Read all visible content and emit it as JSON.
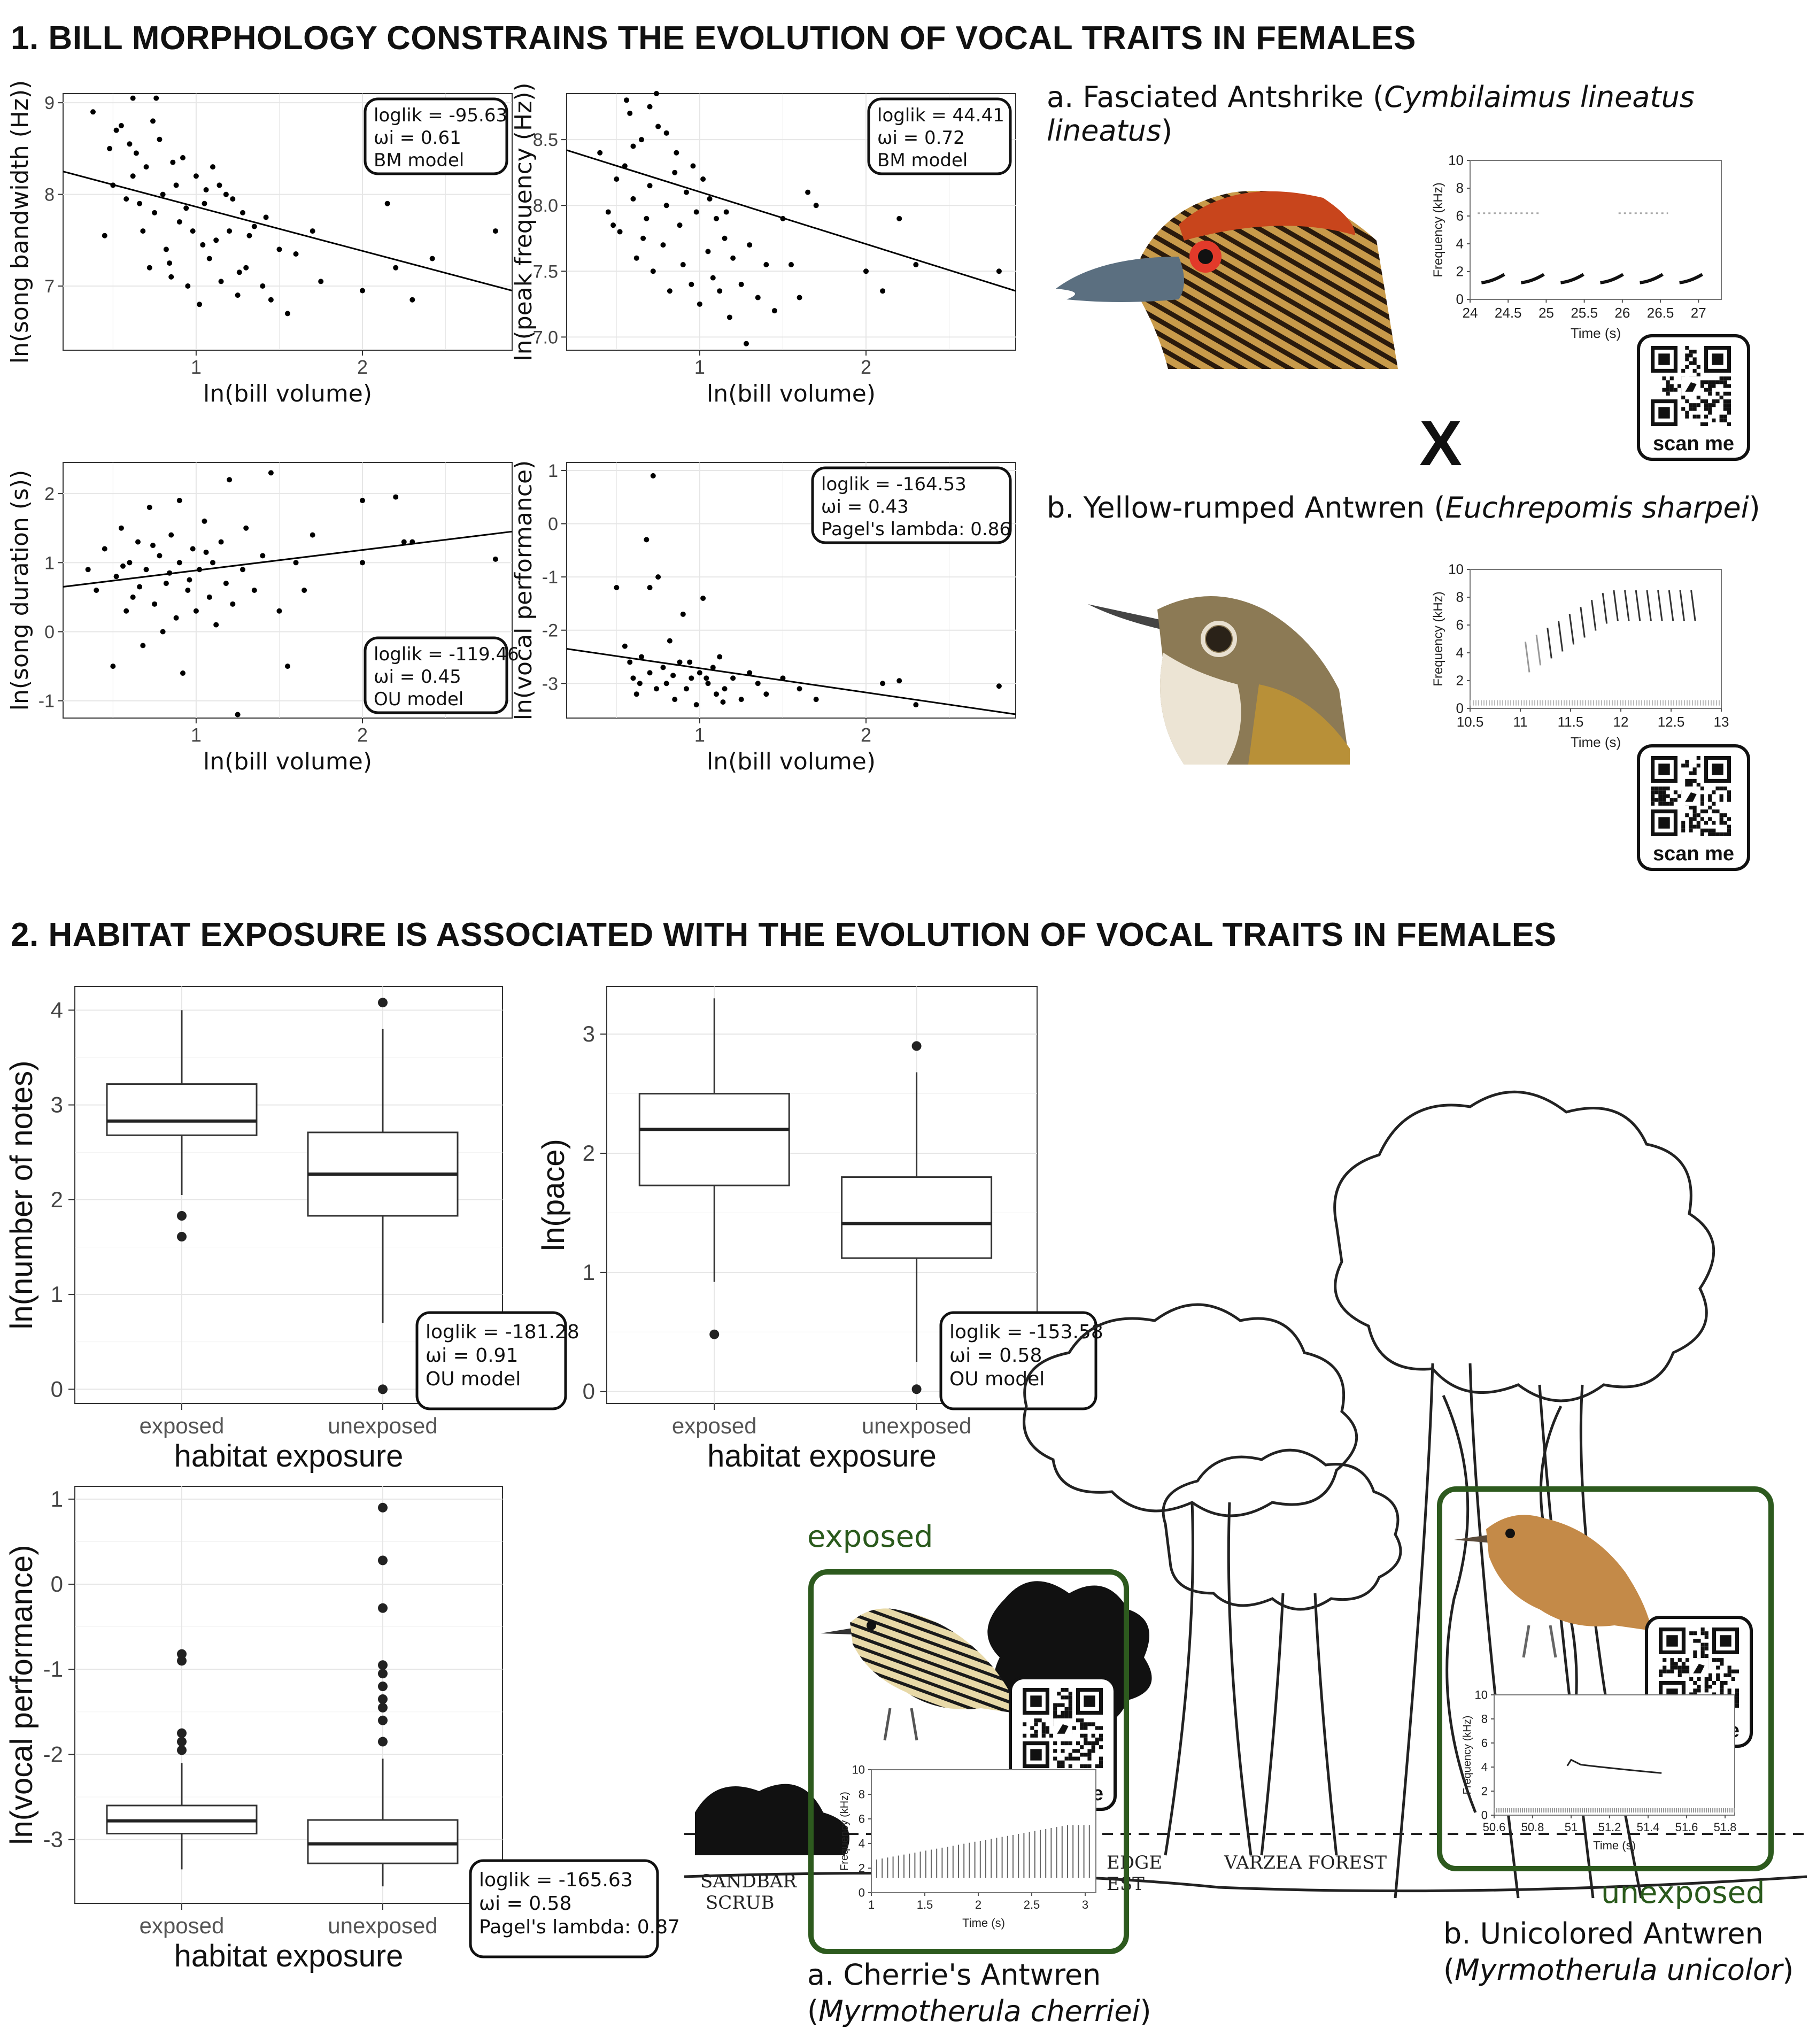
{
  "section1_title": "1. BILL MORPHOLOGY CONSTRAINS THE EVOLUTION OF VOCAL TRAITS IN FEMALES",
  "section2_title": "2. HABITAT EXPOSURE IS ASSOCIATED WITH THE EVOLUTION OF VOCAL TRAITS IN FEMALES",
  "scan_label": "scan me",
  "cross_symbol": "X",
  "species_a": {
    "prefix": "a. Fasciated Antshrike (",
    "latin": "Cymbilaimus lineatus lineatus",
    "suffix": ")"
  },
  "species_b": {
    "prefix": "b. Yellow-rumped Antwren (",
    "latin": "Euchrepomis sharpei",
    "suffix": ")"
  },
  "exposed_label": "exposed",
  "unexposed_label": "unexposed",
  "cherrie": {
    "line1": "a. Cherrie's Antwren",
    "open": "(",
    "latin": "Myrmotherula cherriei",
    "close": ")"
  },
  "unicolor": {
    "line1": "b. Unicolored Antwren",
    "open": "(",
    "latin": "Myrmotherula unicolor",
    "close": ")"
  },
  "forest_labels": [
    "SANDBAR",
    "SCRUB",
    "EDGE",
    "EST",
    "VARZEA FOREST"
  ],
  "colors": {
    "section2_green": "#2d5a1e",
    "scatter_point": "#000000",
    "grid": "#e6e6e6"
  },
  "chart_data": [
    {
      "id": "s1",
      "type": "scatter",
      "xlabel": "ln(bill volume)",
      "ylabel": "ln(song bandwidth (Hz))",
      "xlim": [
        0.2,
        2.9
      ],
      "ylim": [
        6.3,
        9.1
      ],
      "xticks": [
        1,
        2
      ],
      "yticks": [
        7,
        8,
        9
      ],
      "fit": {
        "x": [
          0.2,
          2.9
        ],
        "y": [
          8.25,
          6.95
        ]
      },
      "annotation": [
        "loglik = -95.63",
        "ωi = 0.61",
        "BM model"
      ],
      "points": [
        [
          0.38,
          8.9
        ],
        [
          0.45,
          7.55
        ],
        [
          0.52,
          8.7
        ],
        [
          0.55,
          8.75
        ],
        [
          0.6,
          8.55
        ],
        [
          0.62,
          8.2
        ],
        [
          0.66,
          7.9
        ],
        [
          0.7,
          8.3
        ],
        [
          0.72,
          7.2
        ],
        [
          0.75,
          7.8
        ],
        [
          0.78,
          8.6
        ],
        [
          0.8,
          8.0
        ],
        [
          0.82,
          7.4
        ],
        [
          0.85,
          7.1
        ],
        [
          0.88,
          8.1
        ],
        [
          0.9,
          7.7
        ],
        [
          0.92,
          8.4
        ],
        [
          0.95,
          7.0
        ],
        [
          0.98,
          7.6
        ],
        [
          1.0,
          8.2
        ],
        [
          1.02,
          6.8
        ],
        [
          1.05,
          7.9
        ],
        [
          1.08,
          7.3
        ],
        [
          1.1,
          8.3
        ],
        [
          1.12,
          7.5
        ],
        [
          1.15,
          7.05
        ],
        [
          1.18,
          8.0
        ],
        [
          1.2,
          7.6
        ],
        [
          1.25,
          6.9
        ],
        [
          1.28,
          7.8
        ],
        [
          1.3,
          7.2
        ],
        [
          1.35,
          7.65
        ],
        [
          1.4,
          7.0
        ],
        [
          1.45,
          6.85
        ],
        [
          1.5,
          7.4
        ],
        [
          1.55,
          6.7
        ],
        [
          1.6,
          7.35
        ],
        [
          1.7,
          7.6
        ],
        [
          1.75,
          7.05
        ],
        [
          2.0,
          6.95
        ],
        [
          2.15,
          7.9
        ],
        [
          2.2,
          7.2
        ],
        [
          2.3,
          6.85
        ],
        [
          2.42,
          7.3
        ],
        [
          2.8,
          7.6
        ],
        [
          0.5,
          8.1
        ],
        [
          0.58,
          7.95
        ],
        [
          0.68,
          7.6
        ],
        [
          0.74,
          8.8
        ],
        [
          0.86,
          8.35
        ],
        [
          0.94,
          7.85
        ],
        [
          1.04,
          7.45
        ],
        [
          1.14,
          8.1
        ],
        [
          1.22,
          7.95
        ],
        [
          1.32,
          7.55
        ],
        [
          1.42,
          7.75
        ],
        [
          0.64,
          8.45
        ],
        [
          0.84,
          7.25
        ],
        [
          1.06,
          8.05
        ],
        [
          1.26,
          7.15
        ],
        [
          0.48,
          8.5
        ],
        [
          0.62,
          9.05
        ],
        [
          0.76,
          9.05
        ]
      ]
    },
    {
      "id": "s2",
      "type": "scatter",
      "xlabel": "ln(bill volume)",
      "ylabel": "ln(peak frequency (Hz))",
      "xlim": [
        0.2,
        2.9
      ],
      "ylim": [
        6.9,
        8.85
      ],
      "xticks": [
        1,
        2
      ],
      "yticks": [
        7.0,
        7.5,
        8.0,
        8.5
      ],
      "ytick_labels": [
        "7.0",
        "7.5",
        "8.0",
        "8.5"
      ],
      "fit": {
        "x": [
          0.2,
          2.9
        ],
        "y": [
          8.42,
          7.35
        ]
      },
      "annotation": [
        "loglik = 44.41",
        "ωi = 0.72",
        "BM model"
      ],
      "points": [
        [
          0.4,
          8.4
        ],
        [
          0.45,
          7.95
        ],
        [
          0.5,
          8.2
        ],
        [
          0.52,
          7.8
        ],
        [
          0.55,
          8.3
        ],
        [
          0.58,
          8.7
        ],
        [
          0.6,
          8.05
        ],
        [
          0.62,
          7.6
        ],
        [
          0.65,
          8.5
        ],
        [
          0.68,
          7.9
        ],
        [
          0.7,
          8.15
        ],
        [
          0.72,
          7.5
        ],
        [
          0.75,
          8.6
        ],
        [
          0.78,
          7.7
        ],
        [
          0.8,
          8.0
        ],
        [
          0.82,
          7.35
        ],
        [
          0.85,
          8.25
        ],
        [
          0.88,
          7.85
        ],
        [
          0.9,
          7.55
        ],
        [
          0.92,
          8.1
        ],
        [
          0.95,
          7.4
        ],
        [
          0.98,
          7.95
        ],
        [
          1.0,
          7.25
        ],
        [
          1.02,
          8.2
        ],
        [
          1.05,
          7.65
        ],
        [
          1.08,
          7.45
        ],
        [
          1.1,
          7.9
        ],
        [
          1.12,
          7.35
        ],
        [
          1.15,
          7.75
        ],
        [
          1.18,
          7.15
        ],
        [
          1.2,
          7.6
        ],
        [
          1.25,
          7.4
        ],
        [
          1.28,
          6.95
        ],
        [
          1.3,
          7.7
        ],
        [
          1.35,
          7.3
        ],
        [
          1.4,
          7.55
        ],
        [
          1.45,
          7.2
        ],
        [
          1.5,
          7.9
        ],
        [
          1.55,
          7.55
        ],
        [
          1.6,
          7.3
        ],
        [
          1.65,
          8.1
        ],
        [
          1.7,
          8.0
        ],
        [
          2.0,
          7.5
        ],
        [
          2.1,
          7.35
        ],
        [
          2.2,
          7.9
        ],
        [
          2.3,
          7.55
        ],
        [
          2.8,
          7.5
        ],
        [
          0.48,
          7.85
        ],
        [
          0.6,
          8.45
        ],
        [
          0.7,
          8.75
        ],
        [
          0.8,
          8.55
        ],
        [
          0.66,
          7.75
        ],
        [
          0.86,
          8.4
        ],
        [
          0.96,
          8.3
        ],
        [
          1.06,
          8.05
        ],
        [
          1.16,
          7.95
        ],
        [
          0.56,
          8.8
        ],
        [
          0.74,
          8.85
        ]
      ]
    },
    {
      "id": "s3",
      "type": "scatter",
      "xlabel": "ln(bill volume)",
      "ylabel": "ln(song duration (s))",
      "xlim": [
        0.2,
        2.9
      ],
      "ylim": [
        -1.25,
        2.45
      ],
      "xticks": [
        1,
        2
      ],
      "yticks": [
        -1,
        0,
        1,
        2
      ],
      "fit": {
        "x": [
          0.2,
          2.9
        ],
        "y": [
          0.65,
          1.45
        ]
      },
      "annotation": [
        "loglik = -119.46",
        "ωi = 0.45",
        "OU model"
      ],
      "points": [
        [
          0.35,
          0.9
        ],
        [
          0.4,
          0.6
        ],
        [
          0.45,
          1.2
        ],
        [
          0.5,
          -0.5
        ],
        [
          0.52,
          0.8
        ],
        [
          0.55,
          1.5
        ],
        [
          0.58,
          0.3
        ],
        [
          0.6,
          1.0
        ],
        [
          0.62,
          0.5
        ],
        [
          0.65,
          1.3
        ],
        [
          0.68,
          -0.2
        ],
        [
          0.7,
          0.9
        ],
        [
          0.72,
          1.8
        ],
        [
          0.75,
          0.4
        ],
        [
          0.78,
          1.1
        ],
        [
          0.8,
          0.0
        ],
        [
          0.82,
          0.7
        ],
        [
          0.85,
          1.4
        ],
        [
          0.88,
          0.2
        ],
        [
          0.9,
          1.0
        ],
        [
          0.92,
          -0.6
        ],
        [
          0.95,
          0.6
        ],
        [
          0.98,
          1.2
        ],
        [
          1.0,
          0.3
        ],
        [
          1.02,
          0.9
        ],
        [
          1.05,
          1.6
        ],
        [
          1.08,
          0.5
        ],
        [
          1.1,
          1.0
        ],
        [
          1.12,
          0.1
        ],
        [
          1.15,
          1.3
        ],
        [
          1.18,
          0.7
        ],
        [
          1.2,
          2.2
        ],
        [
          1.22,
          0.4
        ],
        [
          1.25,
          -1.2
        ],
        [
          1.28,
          0.9
        ],
        [
          1.3,
          1.5
        ],
        [
          1.35,
          0.6
        ],
        [
          1.4,
          1.1
        ],
        [
          1.45,
          2.3
        ],
        [
          1.5,
          0.3
        ],
        [
          1.55,
          -0.5
        ],
        [
          1.6,
          1.0
        ],
        [
          1.65,
          0.6
        ],
        [
          1.7,
          1.4
        ],
        [
          2.0,
          1.0
        ],
        [
          2.0,
          1.9
        ],
        [
          2.2,
          1.95
        ],
        [
          2.25,
          1.3
        ],
        [
          2.3,
          1.3
        ],
        [
          2.8,
          1.05
        ],
        [
          0.9,
          1.9
        ],
        [
          0.74,
          1.25
        ],
        [
          0.84,
          0.85
        ],
        [
          0.96,
          0.75
        ],
        [
          1.06,
          1.15
        ],
        [
          0.66,
          0.65
        ],
        [
          0.56,
          0.95
        ]
      ]
    },
    {
      "id": "s4",
      "type": "scatter",
      "xlabel": "ln(bill volume)",
      "ylabel": "ln(vocal performance)",
      "xlim": [
        0.2,
        2.9
      ],
      "ylim": [
        -3.65,
        1.15
      ],
      "xticks": [
        1,
        2
      ],
      "yticks": [
        -3,
        -2,
        -1,
        0,
        1
      ],
      "fit": {
        "x": [
          0.2,
          2.9
        ],
        "y": [
          -2.35,
          -3.58
        ]
      },
      "annotation": [
        "loglik = -164.53",
        "ωi = 0.43",
        "Pagel's lambda: 0.86"
      ],
      "points": [
        [
          0.5,
          -1.2
        ],
        [
          0.55,
          -2.3
        ],
        [
          0.6,
          -2.9
        ],
        [
          0.62,
          -3.2
        ],
        [
          0.65,
          -2.5
        ],
        [
          0.68,
          -0.3
        ],
        [
          0.7,
          -2.8
        ],
        [
          0.72,
          0.9
        ],
        [
          0.75,
          -1.0
        ],
        [
          0.78,
          -2.7
        ],
        [
          0.8,
          -3.0
        ],
        [
          0.82,
          -2.2
        ],
        [
          0.85,
          -3.3
        ],
        [
          0.88,
          -2.6
        ],
        [
          0.9,
          -1.7
        ],
        [
          0.92,
          -3.1
        ],
        [
          0.95,
          -2.9
        ],
        [
          0.98,
          -3.4
        ],
        [
          1.0,
          -2.8
        ],
        [
          1.02,
          -1.4
        ],
        [
          1.05,
          -3.0
        ],
        [
          1.08,
          -2.7
        ],
        [
          1.1,
          -3.2
        ],
        [
          1.12,
          -2.5
        ],
        [
          1.15,
          -3.1
        ],
        [
          1.2,
          -2.9
        ],
        [
          1.25,
          -3.3
        ],
        [
          1.3,
          -2.8
        ],
        [
          1.35,
          -3.0
        ],
        [
          1.4,
          -3.2
        ],
        [
          1.5,
          -2.9
        ],
        [
          1.6,
          -3.1
        ],
        [
          1.7,
          -3.3
        ],
        [
          2.1,
          -3.0
        ],
        [
          2.2,
          -2.95
        ],
        [
          2.3,
          -3.4
        ],
        [
          2.8,
          -3.05
        ],
        [
          0.58,
          -2.6
        ],
        [
          0.64,
          -3.0
        ],
        [
          0.74,
          -3.1
        ],
        [
          0.84,
          -2.85
        ],
        [
          0.94,
          -2.6
        ],
        [
          1.04,
          -2.9
        ],
        [
          1.14,
          -3.35
        ],
        [
          0.7,
          -1.2
        ]
      ]
    },
    {
      "id": "b1",
      "type": "box",
      "xlabel": "habitat exposure",
      "ylabel": "ln(number of notes)",
      "categories": [
        "exposed",
        "unexposed"
      ],
      "ylim": [
        -0.15,
        4.25
      ],
      "yticks": [
        0,
        1,
        2,
        3,
        4
      ],
      "boxes": [
        {
          "min": 2.05,
          "q1": 2.68,
          "median": 2.83,
          "q3": 3.22,
          "max": 4.0,
          "outliers": [
            1.83,
            1.61
          ]
        },
        {
          "min": 0.7,
          "q1": 1.83,
          "median": 2.27,
          "q3": 2.71,
          "max": 3.8,
          "outliers": [
            4.08,
            0.0
          ]
        }
      ],
      "annotation": [
        "loglik = -181.28",
        "ωi = 0.91",
        "OU model"
      ]
    },
    {
      "id": "b2",
      "type": "box",
      "xlabel": "habitat exposure",
      "ylabel": "ln(pace)",
      "categories": [
        "exposed",
        "unexposed"
      ],
      "ylim": [
        -0.1,
        3.4
      ],
      "yticks": [
        0,
        1,
        2,
        3
      ],
      "boxes": [
        {
          "min": 0.92,
          "q1": 1.73,
          "median": 2.2,
          "q3": 2.5,
          "max": 3.3,
          "outliers": [
            0.48
          ]
        },
        {
          "min": 0.25,
          "q1": 1.12,
          "median": 1.41,
          "q3": 1.8,
          "max": 2.68,
          "outliers": [
            2.9,
            0.02
          ]
        }
      ],
      "annotation": [
        "loglik = -153.58",
        "ωi = 0.58",
        "OU model"
      ]
    },
    {
      "id": "b3",
      "type": "box",
      "xlabel": "habitat exposure",
      "ylabel": "ln(vocal performance)",
      "categories": [
        "exposed",
        "unexposed"
      ],
      "ylim": [
        -3.75,
        1.15
      ],
      "yticks": [
        -3,
        -2,
        -1,
        0,
        1
      ],
      "boxes": [
        {
          "min": -3.35,
          "q1": -2.93,
          "median": -2.78,
          "q3": -2.6,
          "max": -2.1,
          "outliers": [
            -0.82,
            -0.9,
            -1.75,
            -1.85,
            -1.95
          ]
        },
        {
          "min": -3.55,
          "q1": -3.28,
          "median": -3.05,
          "q3": -2.77,
          "max": -2.05,
          "outliers": [
            0.9,
            0.28,
            -0.28,
            -0.95,
            -1.05,
            -1.2,
            -1.35,
            -1.45,
            -1.6,
            -1.85
          ]
        }
      ],
      "annotation": [
        "loglik = -165.63",
        "ωi = 0.58",
        "Pagel's lambda: 0.87"
      ]
    },
    {
      "id": "sp_a",
      "type": "spectrogram",
      "xlabel": "Time (s)",
      "ylabel": "Frequency (kHz)",
      "xlim": [
        24,
        27.3
      ],
      "ylim": [
        0,
        10
      ],
      "xticks": [
        "24",
        "24.5",
        "25",
        "25.5",
        "26",
        "26.5",
        "27"
      ],
      "yticks": [
        "0",
        "2",
        "4",
        "6",
        "8",
        "10"
      ]
    },
    {
      "id": "sp_b",
      "type": "spectrogram",
      "xlabel": "Time (s)",
      "ylabel": "Frequency (kHz)",
      "xlim": [
        10.5,
        13
      ],
      "ylim": [
        0,
        10
      ],
      "xticks": [
        "10.5",
        "11",
        "11.5",
        "12",
        "12.5",
        "13"
      ],
      "yticks": [
        "0",
        "2",
        "4",
        "6",
        "8",
        "10"
      ]
    },
    {
      "id": "sp_c",
      "type": "spectrogram",
      "xlabel": "Time (s)",
      "ylabel": "Frequency (kHz)",
      "xlim": [
        1,
        3.1
      ],
      "ylim": [
        0,
        10
      ],
      "xticks": [
        "1",
        "1.5",
        "2",
        "2.5",
        "3"
      ],
      "yticks": [
        "0",
        "2",
        "4",
        "6",
        "8",
        "10"
      ]
    },
    {
      "id": "sp_d",
      "type": "spectrogram",
      "xlabel": "Time (s)",
      "ylabel": "Frequency (kHz)",
      "xlim": [
        50.6,
        51.85
      ],
      "ylim": [
        0,
        10
      ],
      "xticks": [
        "50.6",
        "50.8",
        "51",
        "51.2",
        "51.4",
        "51.6",
        "51.8"
      ],
      "yticks": [
        "0",
        "2",
        "4",
        "6",
        "8",
        "10"
      ]
    }
  ]
}
